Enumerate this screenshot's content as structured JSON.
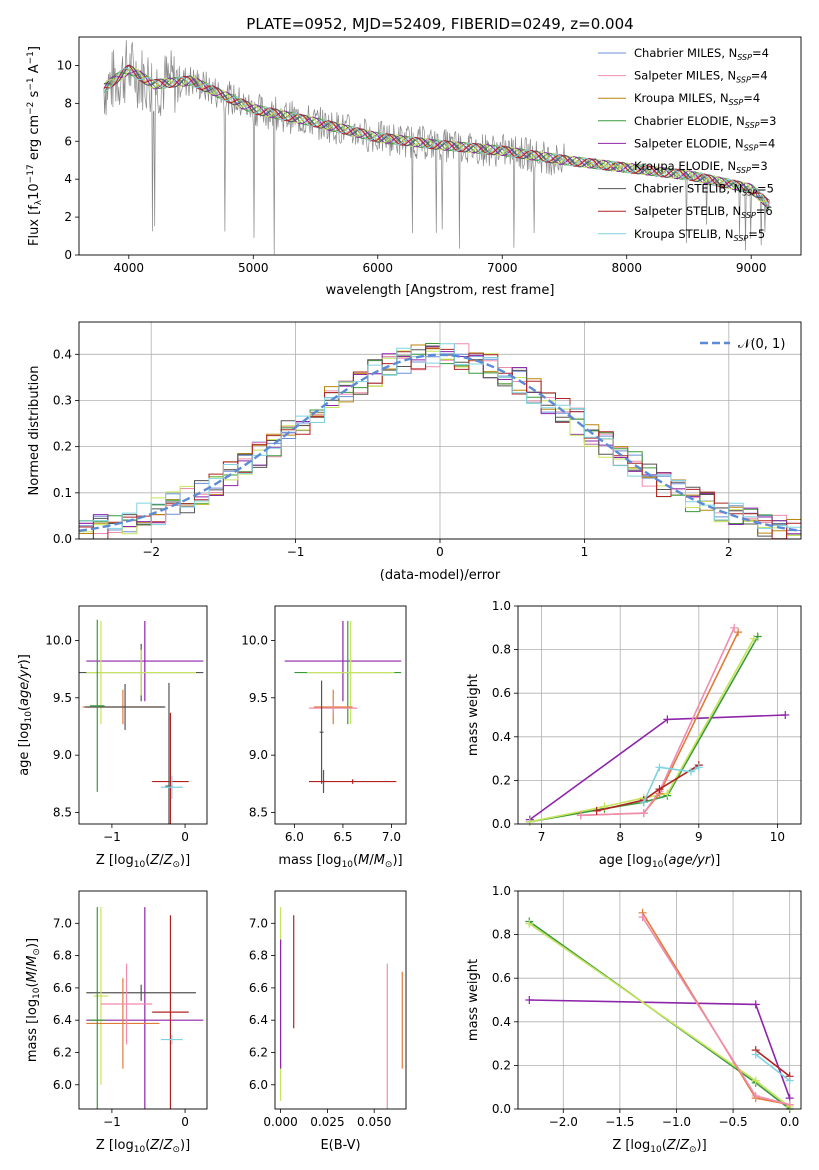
{
  "figure_title": "PLATE=0952, MJD=52409, FIBERID=0249, z=0.004",
  "colors": {
    "Chabrier MILES": "#6b8fd6",
    "Salpeter MILES": "#f08cb0",
    "Kroupa MILES": "#b8860b",
    "Chabrier ELODIE": "#3a9a3a",
    "Salpeter ELODIE": "#8e24aa",
    "Kroupa ELODIE": "#c6e45e",
    "Chabrier STELIB": "#555555",
    "Salpeter STELIB": "#b22222",
    "Kroupa STELIB": "#7fd3e0",
    "gauss": "#5b8bd6",
    "orange": "#e07b39",
    "data": "#888888"
  },
  "chart_data": [
    {
      "id": "spectrum",
      "type": "line",
      "xlabel": "wavelength [Angstrom, rest frame]",
      "ylabel": "Flux [f_λ 10^-17 erg cm^-2 s^-1 A^-1]",
      "xlim": [
        3600,
        9400
      ],
      "ylim": [
        0,
        11.5
      ],
      "xticks": [
        4000,
        5000,
        6000,
        7000,
        8000,
        9000
      ],
      "yticks": [
        0,
        2,
        4,
        6,
        8,
        10
      ],
      "x": [
        3800,
        4000,
        4200,
        4500,
        4800,
        5000,
        5500,
        6000,
        6500,
        7000,
        7500,
        8000,
        8500,
        9000,
        9150
      ],
      "y_model": [
        8.8,
        9.8,
        9.0,
        9.2,
        8.3,
        7.7,
        7.0,
        6.2,
        5.8,
        5.5,
        5.0,
        4.6,
        4.2,
        3.5,
        2.6
      ],
      "legend": [
        {
          "label": "Chabrier MILES, N",
          "sub": "SSP",
          "suffix": "=4"
        },
        {
          "label": "Salpeter MILES, N",
          "sub": "SSP",
          "suffix": "=4"
        },
        {
          "label": "Kroupa MILES, N",
          "sub": "SSP",
          "suffix": "=4"
        },
        {
          "label": "Chabrier ELODIE, N",
          "sub": "SSP",
          "suffix": "=3"
        },
        {
          "label": "Salpeter ELODIE, N",
          "sub": "SSP",
          "suffix": "=4"
        },
        {
          "label": "Kroupa ELODIE, N",
          "sub": "SSP",
          "suffix": "=3"
        },
        {
          "label": "Chabrier STELIB, N",
          "sub": "SSP",
          "suffix": "=5"
        },
        {
          "label": "Salpeter STELIB, N",
          "sub": "SSP",
          "suffix": "=6"
        },
        {
          "label": "Kroupa STELIB, N",
          "sub": "SSP",
          "suffix": "=5"
        }
      ]
    },
    {
      "id": "residuals",
      "type": "line",
      "xlabel": "(data-model)/error",
      "ylabel": "Normed distribution",
      "xlim": [
        -2.5,
        2.5
      ],
      "ylim": [
        0,
        0.47
      ],
      "xticks": [
        -2,
        -1,
        0,
        1,
        2
      ],
      "yticks": [
        0.0,
        0.1,
        0.2,
        0.3,
        0.4
      ],
      "legend": "𝒩(0, 1)",
      "grid": true
    },
    {
      "id": "age_vs_Z",
      "type": "scatter",
      "xlabel": "Z [log10(Z/Z⊙)]",
      "ylabel": "age [log10(age/yr)]",
      "xlim": [
        -1.45,
        0.3
      ],
      "ylim": [
        8.4,
        10.3
      ],
      "xticks": [
        -1,
        0
      ],
      "yticks": [
        8.5,
        9.0,
        9.5,
        10.0
      ],
      "points": [
        {
          "x": -0.55,
          "y": 9.82,
          "xerr": 0.8,
          "yerr": 0.35,
          "c": "#8e24aa"
        },
        {
          "x": -0.6,
          "y": 9.72,
          "xerr": 0.85,
          "yerr": 0.25,
          "c": "#555555"
        },
        {
          "x": -0.6,
          "y": 9.72,
          "xerr": 0.75,
          "yerr": 0.2,
          "c": "#c6e45e"
        },
        {
          "x": -1.15,
          "y": 9.72,
          "xerr": 0.05,
          "yerr": 0.45,
          "c": "#c6e45e"
        },
        {
          "x": -0.85,
          "y": 9.42,
          "xerr": 0.55,
          "yerr": 0.15,
          "c": "#e07b39"
        },
        {
          "x": -0.82,
          "y": 9.42,
          "xerr": 0.55,
          "yerr": 0.2,
          "c": "#555555"
        },
        {
          "x": -1.2,
          "y": 9.43,
          "xerr": 0.1,
          "yerr": 0.75,
          "c": "#3a9a3a"
        },
        {
          "x": -0.2,
          "y": 8.77,
          "xerr": 0.25,
          "yerr": 0.6,
          "c": "#b22222"
        },
        {
          "x": -0.22,
          "y": 8.73,
          "xerr": 0.05,
          "yerr": 0.9,
          "c": "#555555"
        },
        {
          "x": -0.18,
          "y": 8.72,
          "xerr": 0.15,
          "yerr": 0.1,
          "c": "#7fd3e0"
        }
      ]
    },
    {
      "id": "age_vs_mass",
      "type": "scatter",
      "xlabel": "mass [log10(M/M⊙)]",
      "ylabel": "",
      "xlim": [
        5.8,
        7.15
      ],
      "ylim": [
        8.4,
        10.3
      ],
      "xticks": [
        6.0,
        6.5,
        7.0
      ],
      "yticks": [
        8.5,
        9.0,
        9.5,
        10.0
      ],
      "points": [
        {
          "x": 6.5,
          "y": 9.82,
          "xerr": 0.6,
          "yerr": 0.35,
          "c": "#8e24aa"
        },
        {
          "x": 6.55,
          "y": 9.72,
          "xerr": 0.55,
          "yerr": 0.45,
          "c": "#3a9a3a"
        },
        {
          "x": 6.58,
          "y": 9.72,
          "xerr": 0.45,
          "yerr": 0.45,
          "c": "#c6e45e"
        },
        {
          "x": 6.4,
          "y": 9.42,
          "xerr": 0.2,
          "yerr": 0.15,
          "c": "#e07b39"
        },
        {
          "x": 6.4,
          "y": 9.41,
          "xerr": 0.25,
          "yerr": 0.05,
          "c": "#f08cb0"
        },
        {
          "x": 6.28,
          "y": 9.2,
          "xerr": 0.02,
          "yerr": 0.45,
          "c": "#555555"
        },
        {
          "x": 6.3,
          "y": 8.77,
          "xerr": 0.02,
          "yerr": 0.1,
          "c": "#555555"
        },
        {
          "x": 6.6,
          "y": 8.77,
          "xerr": 0.45,
          "yerr": 0.02,
          "c": "#b22222"
        }
      ]
    },
    {
      "id": "weight_vs_age",
      "type": "line",
      "xlabel": "age [log10(age/yr)]",
      "ylabel": "mass weight",
      "xlim": [
        6.7,
        10.3
      ],
      "ylim": [
        0,
        1.0
      ],
      "xticks": [
        7,
        8,
        9,
        10
      ],
      "yticks": [
        0.0,
        0.2,
        0.4,
        0.6,
        0.8,
        1.0
      ],
      "grid": true,
      "series": [
        {
          "x": [
            6.85,
            8.6,
            10.1
          ],
          "y": [
            0.02,
            0.48,
            0.5
          ],
          "c": "#8e24aa"
        },
        {
          "x": [
            6.85,
            7.8,
            8.3,
            8.6,
            9.75
          ],
          "y": [
            0.01,
            0.07,
            0.1,
            0.13,
            0.86
          ],
          "c": "#3a9a3a"
        },
        {
          "x": [
            6.85,
            7.8,
            8.3,
            8.6,
            9.7
          ],
          "y": [
            0.01,
            0.08,
            0.12,
            0.14,
            0.85
          ],
          "c": "#c6e45e"
        },
        {
          "x": [
            7.5,
            8.3,
            8.5,
            9.5
          ],
          "y": [
            0.04,
            0.05,
            0.14,
            0.88
          ],
          "c": "#e07b39"
        },
        {
          "x": [
            7.5,
            8.3,
            8.5,
            9.45
          ],
          "y": [
            0.04,
            0.05,
            0.15,
            0.9
          ],
          "c": "#f08cb0"
        },
        {
          "x": [
            7.7,
            8.3,
            8.5,
            9.0
          ],
          "y": [
            0.06,
            0.11,
            0.16,
            0.27
          ],
          "c": "#b22222"
        },
        {
          "x": [
            8.3,
            8.5,
            8.9,
            9.0
          ],
          "y": [
            0.1,
            0.26,
            0.24,
            0.26
          ],
          "c": "#7fd3e0"
        }
      ]
    },
    {
      "id": "mass_vs_Z",
      "type": "scatter",
      "xlabel": "Z [log10(Z/Z⊙)]",
      "ylabel": "mass [log10(M/M⊙)]",
      "xlim": [
        -1.45,
        0.3
      ],
      "ylim": [
        5.85,
        7.2
      ],
      "xticks": [
        -1,
        0
      ],
      "yticks": [
        6.0,
        6.2,
        6.4,
        6.6,
        6.8,
        7.0
      ],
      "points": [
        {
          "x": -0.55,
          "y": 6.4,
          "xerr": 0.8,
          "yerr": 0.7,
          "c": "#8e24aa"
        },
        {
          "x": -0.6,
          "y": 6.57,
          "xerr": 0.75,
          "yerr": 0.05,
          "c": "#555555"
        },
        {
          "x": -1.15,
          "y": 6.55,
          "xerr": 0.1,
          "yerr": 0.55,
          "c": "#c6e45e"
        },
        {
          "x": -0.85,
          "y": 6.38,
          "xerr": 0.5,
          "yerr": 0.28,
          "c": "#e07b39"
        },
        {
          "x": -0.8,
          "y": 6.5,
          "xerr": 0.35,
          "yerr": 0.25,
          "c": "#f08cb0"
        },
        {
          "x": -1.2,
          "y": 6.4,
          "xerr": 0.1,
          "yerr": 0.7,
          "c": "#3a9a3a"
        },
        {
          "x": -0.2,
          "y": 6.45,
          "xerr": 0.25,
          "yerr": 0.6,
          "c": "#b22222"
        },
        {
          "x": -0.18,
          "y": 6.28,
          "xerr": 0.15,
          "yerr": 0.03,
          "c": "#7fd3e0"
        }
      ]
    },
    {
      "id": "mass_vs_ebv",
      "type": "scatter",
      "xlabel": "E(B-V)",
      "ylabel": "",
      "xlim": [
        -0.003,
        0.067
      ],
      "ylim": [
        5.85,
        7.2
      ],
      "xticks": [
        0.0,
        0.025,
        0.05
      ],
      "xticklabels": [
        "0.000",
        "0.025",
        "0.050"
      ],
      "yticks": [
        6.0,
        6.2,
        6.4,
        6.6,
        6.8,
        7.0
      ],
      "points": [
        {
          "x": 0.0,
          "y": 6.5,
          "xerr": 0,
          "yerr": 0.6,
          "c": "#c6e45e"
        },
        {
          "x": 0.0,
          "y": 6.5,
          "xerr": 0,
          "yerr": 0.4,
          "c": "#8e24aa"
        },
        {
          "x": 0.007,
          "y": 6.7,
          "xerr": 0,
          "yerr": 0.35,
          "c": "#b22222"
        },
        {
          "x": 0.057,
          "y": 6.3,
          "xerr": 0,
          "yerr": 0.45,
          "c": "#f08cb0"
        },
        {
          "x": 0.065,
          "y": 6.4,
          "xerr": 0,
          "yerr": 0.3,
          "c": "#e07b39"
        }
      ]
    },
    {
      "id": "weight_vs_Z",
      "type": "line",
      "xlabel": "Z [log10(Z/Z⊙)]",
      "ylabel": "mass weight",
      "xlim": [
        -2.4,
        0.1
      ],
      "ylim": [
        0,
        1.0
      ],
      "xticks": [
        -2.0,
        -1.5,
        -1.0,
        -0.5,
        0.0
      ],
      "yticks": [
        0.0,
        0.2,
        0.4,
        0.6,
        0.8,
        1.0
      ],
      "grid": true,
      "series": [
        {
          "x": [
            -2.3,
            -0.3,
            0.0
          ],
          "y": [
            0.5,
            0.48,
            0.05
          ],
          "c": "#8e24aa"
        },
        {
          "x": [
            -2.3,
            -0.3,
            0.0
          ],
          "y": [
            0.86,
            0.12,
            0.0
          ],
          "c": "#3a9a3a"
        },
        {
          "x": [
            -2.3,
            -0.3,
            0.0
          ],
          "y": [
            0.85,
            0.13,
            0.01
          ],
          "c": "#c6e45e"
        },
        {
          "x": [
            -1.3,
            -0.3,
            0.0
          ],
          "y": [
            0.9,
            0.05,
            0.02
          ],
          "c": "#e07b39"
        },
        {
          "x": [
            -1.3,
            -0.3,
            0.0
          ],
          "y": [
            0.88,
            0.06,
            0.02
          ],
          "c": "#f08cb0"
        },
        {
          "x": [
            -0.3,
            0.0
          ],
          "y": [
            0.27,
            0.15
          ],
          "c": "#b22222"
        },
        {
          "x": [
            -0.3,
            0.0
          ],
          "y": [
            0.25,
            0.13
          ],
          "c": "#7fd3e0"
        }
      ]
    }
  ]
}
